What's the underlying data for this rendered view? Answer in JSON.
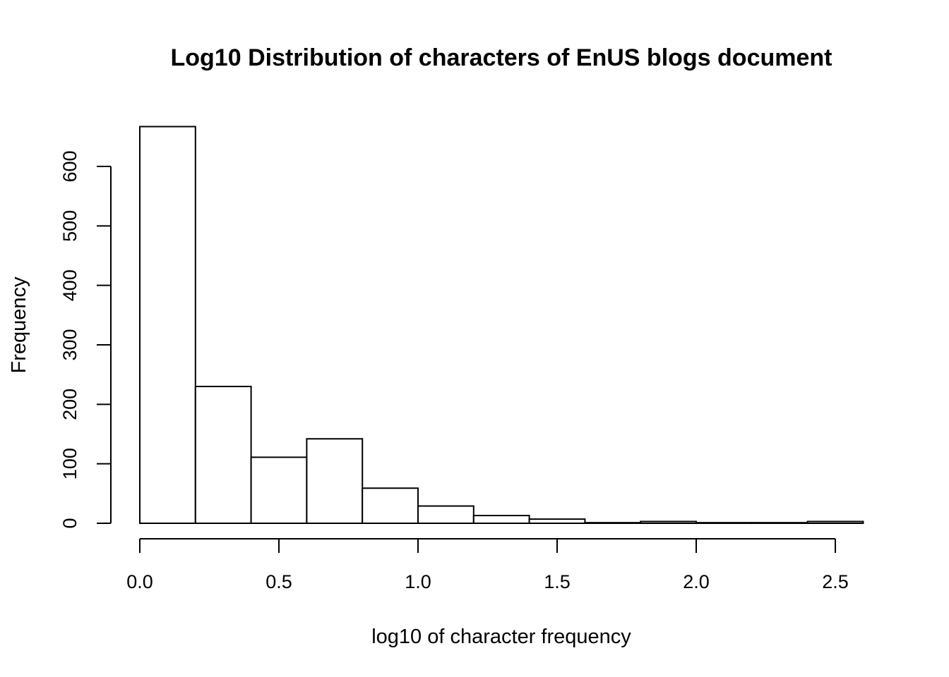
{
  "chart_data": {
    "type": "bar",
    "title": "Log10 Distribution of characters of EnUS blogs document",
    "xlabel": "log10 of character frequency",
    "ylabel": "Frequency",
    "bins": [
      {
        "from": 0.0,
        "to": 0.2,
        "count": 667
      },
      {
        "from": 0.2,
        "to": 0.4,
        "count": 230
      },
      {
        "from": 0.4,
        "to": 0.6,
        "count": 111
      },
      {
        "from": 0.6,
        "to": 0.8,
        "count": 142
      },
      {
        "from": 0.8,
        "to": 1.0,
        "count": 59
      },
      {
        "from": 1.0,
        "to": 1.2,
        "count": 29
      },
      {
        "from": 1.2,
        "to": 1.4,
        "count": 13
      },
      {
        "from": 1.4,
        "to": 1.6,
        "count": 7
      },
      {
        "from": 1.6,
        "to": 1.8,
        "count": 1
      },
      {
        "from": 1.8,
        "to": 2.0,
        "count": 3
      },
      {
        "from": 2.0,
        "to": 2.2,
        "count": 1
      },
      {
        "from": 2.2,
        "to": 2.4,
        "count": 1
      },
      {
        "from": 2.4,
        "to": 2.6,
        "count": 3
      }
    ],
    "x_ticks": [
      0.0,
      0.5,
      1.0,
      1.5,
      2.0,
      2.5
    ],
    "x_tick_labels": [
      "0.0",
      "0.5",
      "1.0",
      "1.5",
      "2.0",
      "2.5"
    ],
    "y_ticks": [
      0,
      100,
      200,
      300,
      400,
      500,
      600
    ],
    "y_tick_labels": [
      "0",
      "100",
      "200",
      "300",
      "400",
      "500",
      "600"
    ],
    "xlim": [
      0,
      2.6
    ],
    "ylim": [
      0,
      667
    ],
    "grid": false,
    "bar_fill": "#ffffff",
    "bar_stroke": "#000000"
  }
}
